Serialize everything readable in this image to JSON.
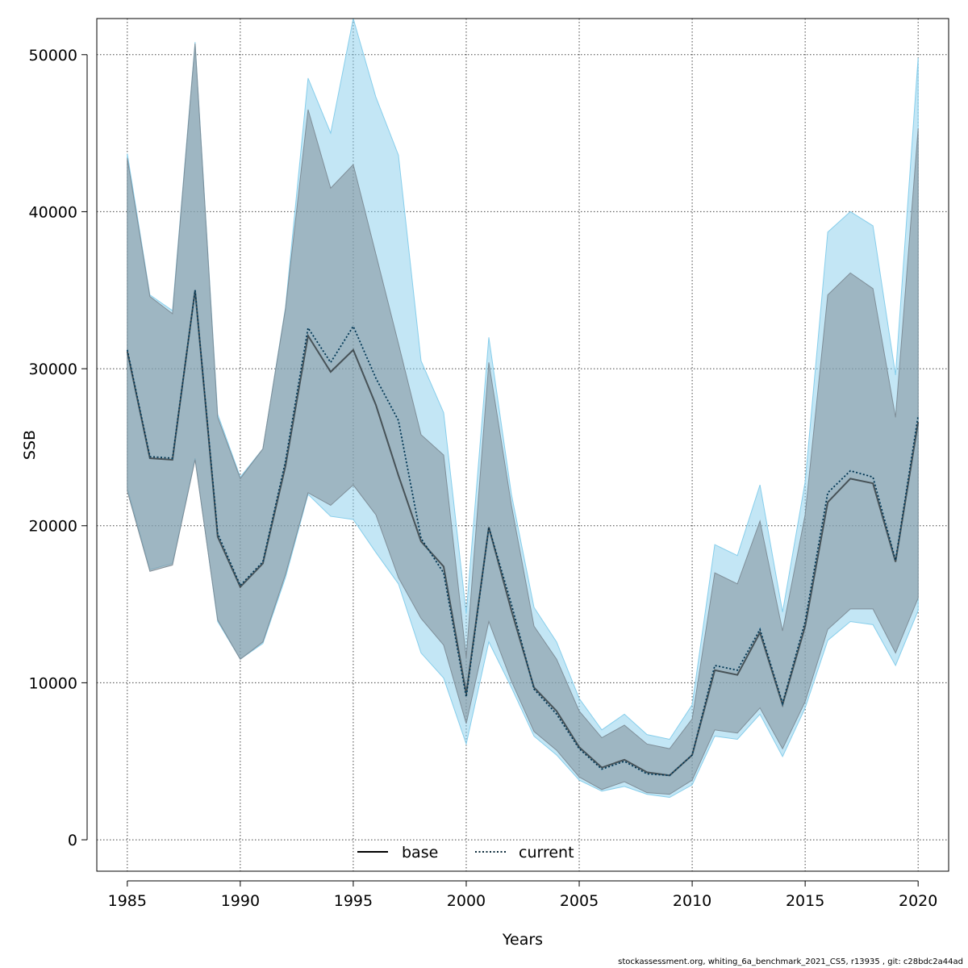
{
  "chart_data": {
    "type": "line",
    "xlabel": "Years",
    "ylabel": "SSB",
    "xlim": [
      1983.65,
      2021.35
    ],
    "ylim": [
      -2000,
      52300
    ],
    "xticks": [
      1985,
      1990,
      1995,
      2000,
      2005,
      2010,
      2015,
      2020
    ],
    "yticks": [
      0,
      10000,
      20000,
      30000,
      40000,
      50000
    ],
    "grid": true,
    "legend_position": "bottom",
    "x": [
      1985,
      1986,
      1987,
      1988,
      1989,
      1990,
      1991,
      1992,
      1993,
      1994,
      1995,
      1996,
      1997,
      1998,
      1999,
      2000,
      2001,
      2002,
      2003,
      2004,
      2005,
      2006,
      2007,
      2008,
      2009,
      2010,
      2011,
      2012,
      2013,
      2014,
      2015,
      2016,
      2017,
      2018,
      2019,
      2020
    ],
    "series": [
      {
        "name": "base",
        "color": "#000000",
        "linestyle": "solid",
        "band_color": "#7f8e98",
        "values": [
          31100,
          24300,
          24200,
          35000,
          19300,
          16100,
          17600,
          23800,
          32100,
          29800,
          31200,
          27700,
          23200,
          19000,
          17400,
          9300,
          19900,
          14600,
          9700,
          8200,
          5900,
          4600,
          5100,
          4300,
          4100,
          5400,
          10800,
          10500,
          13200,
          8600,
          13600,
          21500,
          23000,
          22700,
          17700,
          26600
        ],
        "lower": [
          22200,
          17100,
          17500,
          24200,
          14000,
          11500,
          12600,
          16900,
          22100,
          21300,
          22600,
          20700,
          16700,
          14100,
          12400,
          7400,
          13900,
          10100,
          6900,
          5700,
          4000,
          3200,
          3700,
          3000,
          2900,
          3800,
          7000,
          6800,
          8400,
          5800,
          8800,
          13400,
          14700,
          14700,
          11900,
          15400
        ],
        "upper": [
          43400,
          34600,
          33500,
          50700,
          26900,
          23000,
          24900,
          33800,
          46500,
          41500,
          43000,
          37300,
          31600,
          25800,
          24500,
          11600,
          30400,
          21300,
          13600,
          11500,
          8200,
          6500,
          7300,
          6100,
          5800,
          7700,
          17000,
          16300,
          20300,
          13300,
          20700,
          34700,
          36100,
          35100,
          26900,
          45300
        ]
      },
      {
        "name": "current",
        "color": "#1a6e9e",
        "linestyle": "dotted",
        "band_color": "#87ceeb",
        "values": [
          31200,
          24400,
          24300,
          35000,
          19500,
          16200,
          17700,
          24100,
          32600,
          30400,
          32700,
          29400,
          26700,
          19200,
          17000,
          9100,
          19900,
          15000,
          9600,
          8000,
          5800,
          4500,
          5000,
          4200,
          4100,
          5400,
          11100,
          10800,
          13400,
          8700,
          13900,
          22100,
          23500,
          23100,
          17800,
          27000
        ],
        "lower": [
          22400,
          17200,
          17600,
          24300,
          13900,
          11500,
          12500,
          16700,
          22000,
          20600,
          20400,
          18300,
          16300,
          11900,
          10300,
          6100,
          12600,
          9700,
          6600,
          5400,
          3800,
          3100,
          3400,
          2900,
          2700,
          3500,
          6600,
          6400,
          8000,
          5300,
          8400,
          12700,
          13900,
          13700,
          11100,
          14600
        ],
        "upper": [
          43700,
          34700,
          33700,
          50800,
          27100,
          23100,
          24900,
          33900,
          48500,
          45000,
          52300,
          47300,
          43600,
          30500,
          27200,
          14400,
          32000,
          22000,
          14800,
          12600,
          9000,
          7000,
          8000,
          6700,
          6400,
          8600,
          18800,
          18100,
          22600,
          14500,
          22800,
          38700,
          40000,
          39100,
          29600,
          49800
        ]
      }
    ],
    "footer": "stockassessment.org, whiting_6a_benchmark_2021_CS5, r13935 , git: c28bdc2a44ad"
  }
}
